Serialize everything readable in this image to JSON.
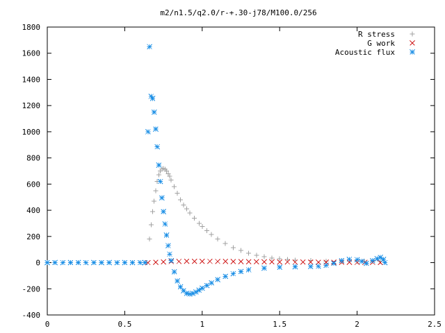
{
  "chart_data": {
    "type": "scatter",
    "title": "m2/n1.5/q2.0/r-+.30-j78/M100.0/256",
    "xlabel": "",
    "ylabel": "",
    "xlim": [
      0,
      2.5
    ],
    "ylim": [
      -400,
      1800
    ],
    "x_ticks": [
      0,
      0.5,
      1,
      1.5,
      2,
      2.5
    ],
    "x_tick_labels": [
      "0",
      "0.5",
      "1",
      "1.5",
      "2",
      "2.5"
    ],
    "y_ticks": [
      -400,
      -200,
      0,
      200,
      400,
      600,
      800,
      1000,
      1200,
      1400,
      1600,
      1800
    ],
    "y_tick_labels": [
      "-400",
      "-200",
      "0",
      "200",
      "400",
      "600",
      "800",
      "1000",
      "1200",
      "1400",
      "1600",
      "1800"
    ],
    "grid": false,
    "legend_position": "top-right",
    "series": [
      {
        "name": "R stress",
        "marker": "plus",
        "color": "#a0a0a0",
        "x": [
          0.0,
          0.1,
          0.2,
          0.3,
          0.4,
          0.5,
          0.6,
          0.64,
          0.66,
          0.67,
          0.68,
          0.69,
          0.7,
          0.71,
          0.72,
          0.73,
          0.74,
          0.75,
          0.76,
          0.77,
          0.78,
          0.79,
          0.8,
          0.82,
          0.84,
          0.86,
          0.88,
          0.9,
          0.92,
          0.95,
          0.98,
          1.0,
          1.03,
          1.06,
          1.1,
          1.15,
          1.2,
          1.25,
          1.3,
          1.35,
          1.4,
          1.45,
          1.5,
          1.55,
          1.6,
          1.7,
          1.8,
          1.9,
          2.0,
          2.05,
          2.1,
          2.15,
          2.18
        ],
        "y": [
          0,
          0,
          0,
          0,
          0,
          0,
          0,
          0,
          180,
          290,
          390,
          470,
          550,
          620,
          670,
          700,
          715,
          718,
          712,
          700,
          680,
          660,
          630,
          580,
          530,
          480,
          440,
          410,
          380,
          340,
          300,
          275,
          245,
          215,
          180,
          145,
          115,
          92,
          72,
          57,
          45,
          36,
          29,
          24,
          20,
          15,
          11,
          9,
          8,
          8,
          10,
          12,
          0
        ]
      },
      {
        "name": "G work",
        "marker": "cross",
        "color": "#d02020",
        "x": [
          0.0,
          0.1,
          0.2,
          0.3,
          0.4,
          0.5,
          0.6,
          0.65,
          0.7,
          0.75,
          0.8,
          0.85,
          0.9,
          0.95,
          1.0,
          1.05,
          1.1,
          1.15,
          1.2,
          1.25,
          1.3,
          1.35,
          1.4,
          1.45,
          1.5,
          1.55,
          1.6,
          1.65,
          1.7,
          1.75,
          1.8,
          1.85,
          1.9,
          1.95,
          2.0,
          2.05,
          2.1,
          2.15,
          2.18
        ],
        "y": [
          0,
          0,
          0,
          0,
          0,
          0,
          0,
          0,
          2,
          6,
          8,
          9,
          10,
          10,
          10,
          10,
          9,
          9,
          8,
          8,
          7,
          7,
          6,
          6,
          5,
          5,
          4,
          4,
          4,
          3,
          3,
          3,
          3,
          2,
          2,
          2,
          2,
          1,
          0
        ]
      },
      {
        "name": "Acoustic flux",
        "marker": "star",
        "color": "#1e90e6",
        "x": [
          0.0,
          0.05,
          0.1,
          0.15,
          0.2,
          0.25,
          0.3,
          0.35,
          0.4,
          0.45,
          0.5,
          0.55,
          0.6,
          0.63,
          0.65,
          0.66,
          0.67,
          0.68,
          0.69,
          0.7,
          0.71,
          0.72,
          0.73,
          0.74,
          0.75,
          0.76,
          0.77,
          0.78,
          0.79,
          0.8,
          0.82,
          0.84,
          0.86,
          0.88,
          0.9,
          0.92,
          0.94,
          0.96,
          0.98,
          1.0,
          1.03,
          1.06,
          1.1,
          1.15,
          1.2,
          1.25,
          1.3,
          1.4,
          1.5,
          1.6,
          1.7,
          1.75,
          1.8,
          1.85,
          1.9,
          1.95,
          2.0,
          2.03,
          2.06,
          2.1,
          2.13,
          2.15,
          2.17,
          2.18
        ],
        "y": [
          0,
          0,
          0,
          0,
          0,
          0,
          0,
          0,
          0,
          0,
          0,
          0,
          0,
          0,
          1000,
          1650,
          1270,
          1255,
          1150,
          1020,
          885,
          745,
          620,
          495,
          390,
          295,
          210,
          130,
          65,
          15,
          -70,
          -140,
          -185,
          -215,
          -235,
          -240,
          -235,
          -225,
          -210,
          -195,
          -175,
          -155,
          -130,
          -105,
          -85,
          -68,
          -55,
          -42,
          -35,
          -32,
          -30,
          -28,
          -20,
          -5,
          15,
          25,
          22,
          10,
          -5,
          15,
          30,
          40,
          25,
          0
        ]
      }
    ]
  }
}
